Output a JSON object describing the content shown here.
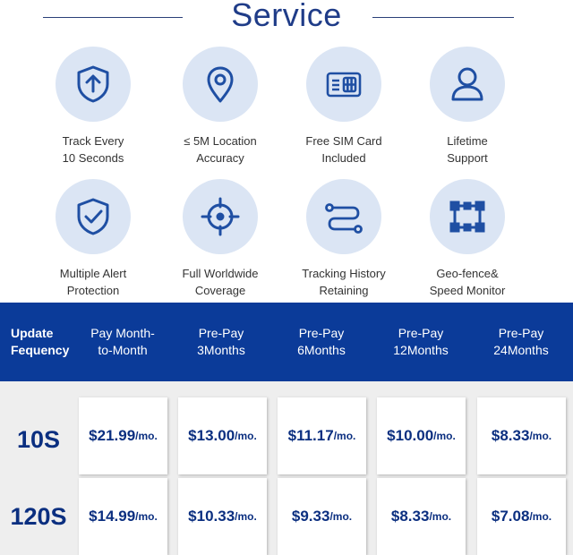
{
  "header": {
    "title": "Service"
  },
  "features": [
    {
      "icon": "shield-arrow-icon",
      "line1": "Track Every",
      "line2": "10 Seconds"
    },
    {
      "icon": "location-pin-icon",
      "line1": "≤ 5M Location",
      "line2": "Accuracy"
    },
    {
      "icon": "sim-card-icon",
      "line1": "Free SIM Card",
      "line2": "Included"
    },
    {
      "icon": "user-icon",
      "line1": "Lifetime",
      "line2": "Support"
    },
    {
      "icon": "shield-check-icon",
      "line1": "Multiple Alert",
      "line2": "Protection"
    },
    {
      "icon": "crosshair-icon",
      "line1": "Full Worldwide",
      "line2": "Coverage"
    },
    {
      "icon": "route-icon",
      "line1": "Tracking History",
      "line2": "Retaining"
    },
    {
      "icon": "geofence-icon",
      "line1": "Geo-fence&",
      "line2": "Speed Monitor"
    }
  ],
  "pricing": {
    "header_label": {
      "line1": "Update",
      "line2": "Fequency"
    },
    "plans": [
      {
        "line1": "Pay Month-",
        "line2": "to-Month"
      },
      {
        "line1": "Pre-Pay",
        "line2": "3Months"
      },
      {
        "line1": "Pre-Pay",
        "line2": "6Months"
      },
      {
        "line1": "Pre-Pay",
        "line2": "12Months"
      },
      {
        "line1": "Pre-Pay",
        "line2": "24Months"
      }
    ],
    "rows": [
      {
        "label": "10S",
        "prices": [
          "$21.99",
          "$13.00",
          "$11.17",
          "$10.00",
          "$8.33"
        ]
      },
      {
        "label": "120S",
        "prices": [
          "$14.99",
          "$10.33",
          "$9.33",
          "$8.33",
          "$7.08"
        ]
      }
    ],
    "unit": "/mo."
  },
  "colors": {
    "brand": "#0b3b99",
    "title": "#1f3c88",
    "icon_bg": "#dbe5f4",
    "icon_stroke": "#1f4fa3"
  }
}
